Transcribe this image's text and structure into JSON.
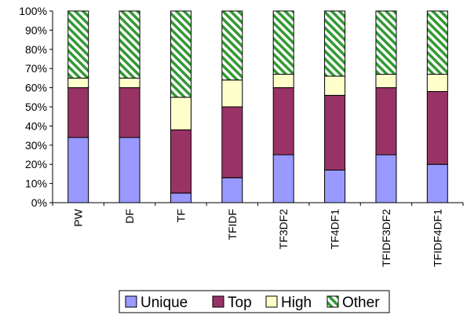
{
  "chart_data": {
    "type": "bar",
    "stacked": true,
    "percent_axis": true,
    "title": "",
    "xlabel": "",
    "ylabel": "",
    "ylim": [
      0,
      100
    ],
    "yticks": [
      "0%",
      "10%",
      "20%",
      "30%",
      "40%",
      "50%",
      "60%",
      "70%",
      "80%",
      "90%",
      "100%"
    ],
    "grid": false,
    "legend_position": "bottom",
    "categories": [
      "PW",
      "DF",
      "TF",
      "TFIDF",
      "TF3DF2",
      "TF4DF1",
      "TFIDF3DF2",
      "TFIDF4DF1"
    ],
    "series": [
      {
        "name": "Unique",
        "color": "#9999ff",
        "pattern": "solid",
        "values": [
          34,
          34,
          5,
          13,
          25,
          17,
          25,
          20
        ]
      },
      {
        "name": "Top",
        "color": "#993366",
        "pattern": "solid",
        "values": [
          26,
          26,
          33,
          37,
          35,
          39,
          35,
          38
        ]
      },
      {
        "name": "High",
        "color": "#ffffcc",
        "pattern": "solid",
        "values": [
          5,
          5,
          17,
          14,
          7,
          10,
          7,
          9
        ]
      },
      {
        "name": "Other",
        "color": "#339933",
        "pattern": "diagonal-hatch",
        "values": [
          35,
          35,
          45,
          36,
          33,
          34,
          33,
          33
        ]
      }
    ]
  }
}
